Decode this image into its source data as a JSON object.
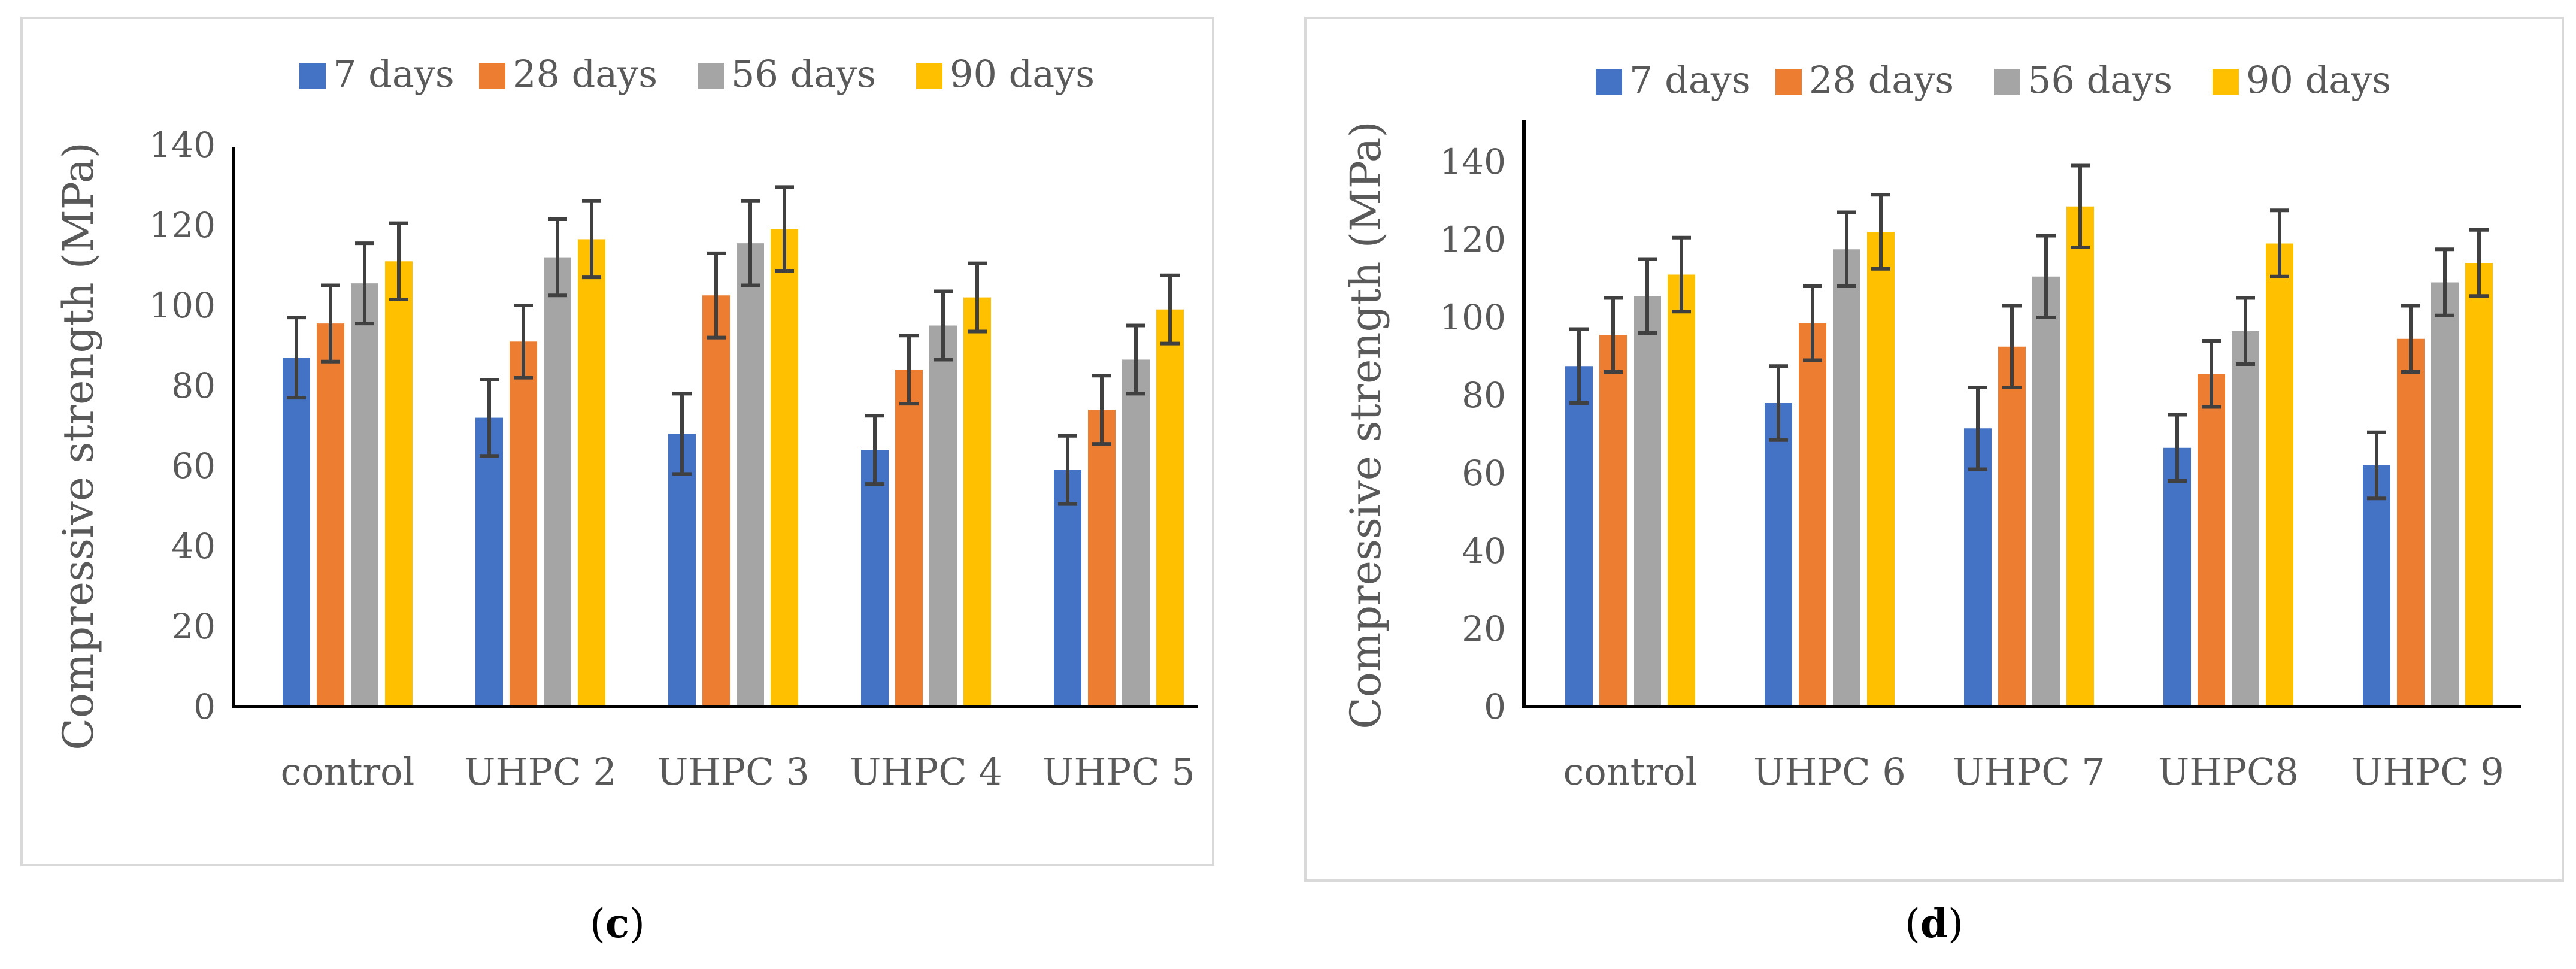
{
  "colors": {
    "7 days": "#4472c4",
    "28 days": "#ed7d31",
    "56 days": "#a5a5a5",
    "90 days": "#ffc000"
  },
  "chart_data": [
    {
      "type": "bar",
      "panel": "c",
      "caption_letter": "c",
      "title": "",
      "xlabel": "",
      "ylabel": "Compressive strength (MPa)",
      "ylim": [
        0,
        140
      ],
      "yticks": [
        0,
        20,
        40,
        60,
        80,
        100,
        120,
        140
      ],
      "categories": [
        "control",
        "UHPC 2",
        "UHPC 3",
        "UHPC 4",
        "UHPC 5"
      ],
      "legend_position": "top",
      "series": [
        {
          "name": "7 days",
          "values": [
            87,
            72,
            68,
            64,
            59
          ],
          "errors": [
            10,
            9.5,
            10,
            8.5,
            8.5
          ]
        },
        {
          "name": "28 days",
          "values": [
            95.5,
            91,
            102.5,
            84,
            74
          ],
          "errors": [
            9.5,
            9,
            10.5,
            8.5,
            8.5
          ]
        },
        {
          "name": "56 days",
          "values": [
            105.5,
            112,
            115.5,
            95,
            86.5
          ],
          "errors": [
            10,
            9.5,
            10.5,
            8.5,
            8.5
          ]
        },
        {
          "name": "90 days",
          "values": [
            111,
            116.5,
            119,
            102,
            99
          ],
          "errors": [
            9.5,
            9.5,
            10.5,
            8.5,
            8.5
          ]
        }
      ]
    },
    {
      "type": "bar",
      "panel": "d",
      "caption_letter": "d",
      "title": "",
      "xlabel": "",
      "ylabel": "Compressive strength (MPa)",
      "ylim": [
        0,
        150
      ],
      "yticks": [
        0,
        20,
        40,
        60,
        80,
        100,
        120,
        140
      ],
      "categories": [
        "control",
        "UHPC 6",
        "UHPC 7",
        "UHPC8",
        "UHPC 9"
      ],
      "legend_position": "top",
      "series": [
        {
          "name": "7 days",
          "values": [
            87.5,
            78,
            71.5,
            66.5,
            62
          ],
          "errors": [
            9.5,
            9.5,
            10.5,
            8.5,
            8.5
          ]
        },
        {
          "name": "28 days",
          "values": [
            95.5,
            98.5,
            92.5,
            85.5,
            94.5
          ],
          "errors": [
            9.5,
            9.5,
            10.5,
            8.5,
            8.5
          ]
        },
        {
          "name": "56 days",
          "values": [
            105.5,
            117.5,
            110.5,
            96.5,
            109
          ],
          "errors": [
            9.5,
            9.5,
            10.5,
            8.5,
            8.5
          ]
        },
        {
          "name": "90 days",
          "values": [
            111,
            122,
            128.5,
            119,
            114
          ],
          "errors": [
            9.5,
            9.5,
            10.5,
            8.5,
            8.5
          ]
        }
      ]
    }
  ]
}
